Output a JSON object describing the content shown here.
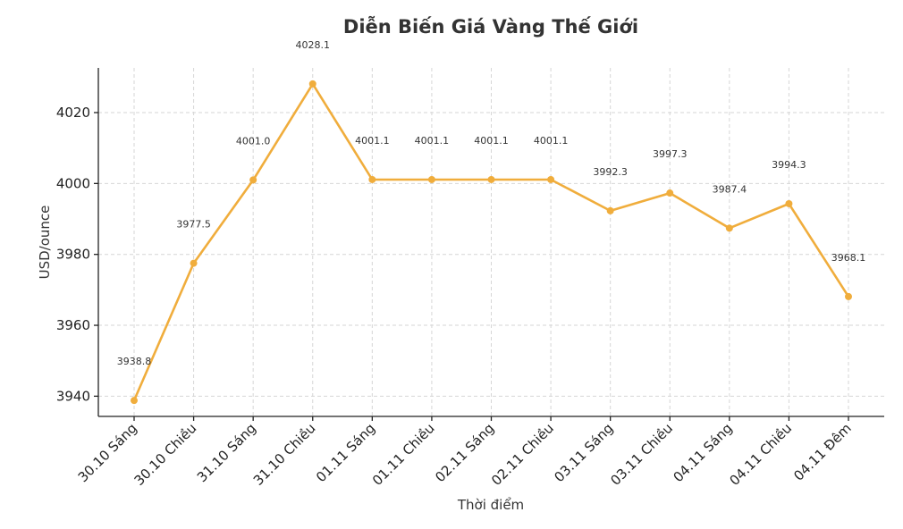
{
  "chart_data": {
    "type": "line",
    "title": "Diễn Biến Giá Vàng Thế Giới",
    "xlabel": "Thời điểm",
    "ylabel": "USD/ounce",
    "categories": [
      "30.10 Sáng",
      "30.10 Chiều",
      "31.10 Sáng",
      "31.10 Chiều",
      "01.11 Sáng",
      "01.11 Chiều",
      "02.11 Sáng",
      "02.11 Chiều",
      "03.11 Sáng",
      "03.11 Chiều",
      "04.11 Sáng",
      "04.11 Chiều",
      "04.11 Đêm"
    ],
    "series": [
      {
        "values": [
          3938.8,
          3977.5,
          4001.0,
          4028.1,
          4001.1,
          4001.1,
          4001.1,
          4001.1,
          3992.3,
          3997.3,
          3987.4,
          3994.3,
          3968.1
        ],
        "color": "#f0ad3c"
      }
    ],
    "data_labels": [
      "3938.8",
      "3977.5",
      "4001.0",
      "4028.1",
      "4001.1",
      "4001.1",
      "4001.1",
      "4001.1",
      "3992.3",
      "3997.3",
      "3987.4",
      "3994.3",
      "3968.1"
    ],
    "ylim": [
      3934.3,
      4032.6
    ],
    "yticks": [
      3940,
      3960,
      3980,
      4000,
      4020
    ],
    "ytick_labels": [
      "3940",
      "3960",
      "3980",
      "4000",
      "4020"
    ],
    "grid": true,
    "legend": "none"
  }
}
